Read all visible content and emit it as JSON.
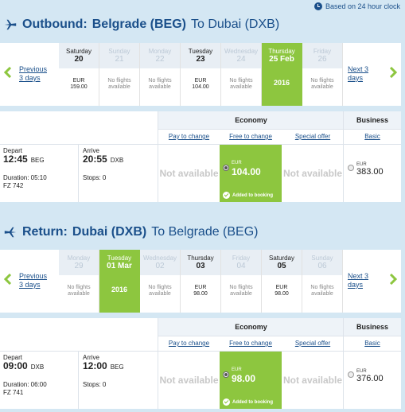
{
  "clock_note": "Based on 24 hour clock",
  "outbound": {
    "dir_label": "Outbound:",
    "from": "Belgrade (BEG)",
    "to": "To Dubai (DXB)",
    "prev_label": "Previous 3 days",
    "next_label": "Next 3 days",
    "days": [
      {
        "name": "Saturday",
        "num": "20",
        "body1": "EUR",
        "body2": "159.00",
        "state": "avail"
      },
      {
        "name": "Sunday",
        "num": "21",
        "body1": "No flights",
        "body2": "available",
        "state": "na"
      },
      {
        "name": "Monday",
        "num": "22",
        "body1": "No flights",
        "body2": "available",
        "state": "na"
      },
      {
        "name": "Tuesday",
        "num": "23",
        "body1": "EUR",
        "body2": "104.00",
        "state": "avail"
      },
      {
        "name": "Wednesday",
        "num": "24",
        "body1": "No flights",
        "body2": "available",
        "state": "na"
      },
      {
        "name": "Thursday",
        "num": "25 Feb",
        "body1": "2016",
        "body2": "",
        "state": "sel"
      },
      {
        "name": "Friday",
        "num": "26",
        "body1": "No flights",
        "body2": "available",
        "state": "na"
      }
    ],
    "economy_label": "Economy",
    "business_label": "Business",
    "fare_types": [
      "Pay to change",
      "Free to change",
      "Special offer",
      "Basic"
    ],
    "depart_label": "Depart",
    "depart_time": "12:45",
    "depart_code": "BEG",
    "arrive_label": "Arrive",
    "arrive_time": "20:55",
    "arrive_code": "DXB",
    "duration": "Duration: 05:10",
    "flight_no": "FZ 742",
    "stops": "Stops: 0",
    "not_available": "Not available",
    "selected_currency": "EUR",
    "selected_amount": "104.00",
    "added_label": "Added to booking",
    "business_currency": "EUR",
    "business_amount": "383.00"
  },
  "return": {
    "dir_label": "Return:",
    "from": "Dubai (DXB)",
    "to": "To Belgrade (BEG)",
    "prev_label": "Previous 3 days",
    "next_label": "Next 3 days",
    "days": [
      {
        "name": "Monday",
        "num": "29",
        "body1": "No flights",
        "body2": "available",
        "state": "na"
      },
      {
        "name": "Tuesday",
        "num": "01 Mar",
        "body1": "2016",
        "body2": "",
        "state": "sel"
      },
      {
        "name": "Wednesday",
        "num": "02",
        "body1": "No flights",
        "body2": "available",
        "state": "na"
      },
      {
        "name": "Thursday",
        "num": "03",
        "body1": "EUR",
        "body2": "98.00",
        "state": "avail"
      },
      {
        "name": "Friday",
        "num": "04",
        "body1": "No flights",
        "body2": "available",
        "state": "na"
      },
      {
        "name": "Saturday",
        "num": "05",
        "body1": "EUR",
        "body2": "98.00",
        "state": "avail"
      },
      {
        "name": "Sunday",
        "num": "06",
        "body1": "No flights",
        "body2": "available",
        "state": "na"
      }
    ],
    "economy_label": "Economy",
    "business_label": "Business",
    "fare_types": [
      "Pay to change",
      "Free to change",
      "Special offer",
      "Basic"
    ],
    "depart_label": "Depart",
    "depart_time": "09:00",
    "depart_code": "DXB",
    "arrive_label": "Arrive",
    "arrive_time": "12:00",
    "arrive_code": "BEG",
    "duration": "Duration: 06:00",
    "flight_no": "FZ 741",
    "stops": "Stops: 0",
    "not_available": "Not available",
    "selected_currency": "EUR",
    "selected_amount": "98.00",
    "added_label": "Added to booking",
    "business_currency": "EUR",
    "business_amount": "376.00"
  },
  "colors": {
    "accent": "#8dc63f",
    "brand": "#1a4f8a",
    "background": "#d4e7f3"
  }
}
